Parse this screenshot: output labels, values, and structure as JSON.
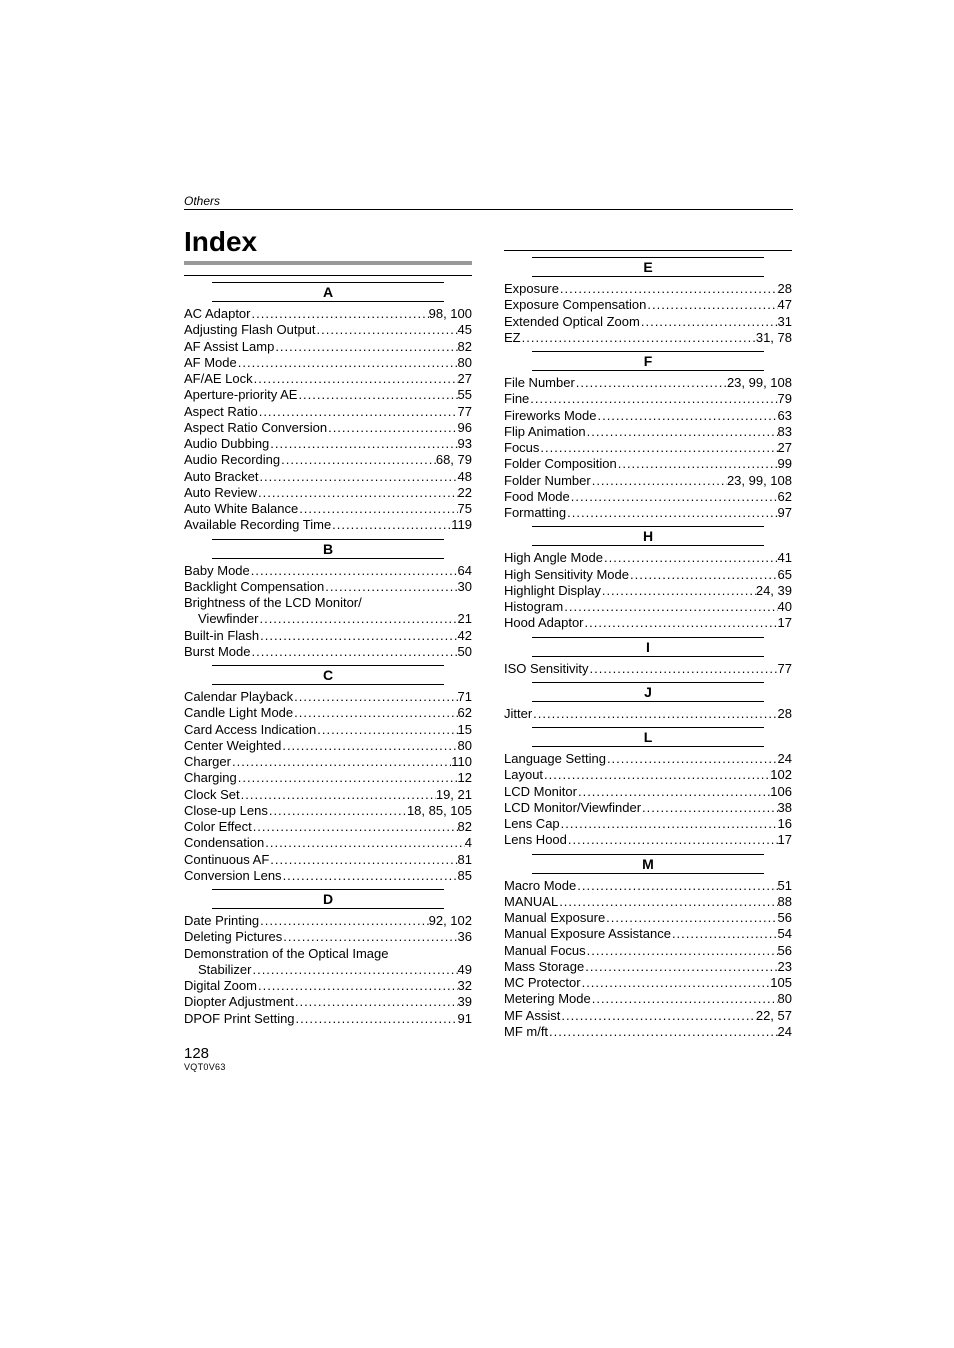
{
  "header_section": "Others",
  "title": "Index",
  "page_number": "128",
  "doc_code": "VQT0V63",
  "left_sections": [
    {
      "letter": "A",
      "top_rule": true,
      "entries": [
        {
          "term": "AC Adaptor",
          "pages": "98, 100"
        },
        {
          "term": "Adjusting Flash Output",
          "pages": "45"
        },
        {
          "term": "AF Assist Lamp",
          "pages": "82"
        },
        {
          "term": "AF Mode",
          "pages": "80"
        },
        {
          "term": "AF/AE Lock",
          "pages": "27"
        },
        {
          "term": "Aperture-priority AE",
          "pages": "55"
        },
        {
          "term": "Aspect Ratio",
          "pages": "77"
        },
        {
          "term": "Aspect Ratio Conversion",
          "pages": "96"
        },
        {
          "term": "Audio Dubbing",
          "pages": "93"
        },
        {
          "term": "Audio Recording",
          "pages": "68, 79"
        },
        {
          "term": "Auto Bracket",
          "pages": "48"
        },
        {
          "term": "Auto Review",
          "pages": "22"
        },
        {
          "term": "Auto White Balance",
          "pages": "75"
        },
        {
          "term": "Available Recording Time",
          "pages": "119"
        }
      ]
    },
    {
      "letter": "B",
      "entries": [
        {
          "term": "Baby Mode",
          "pages": "64"
        },
        {
          "term": "Backlight Compensation",
          "pages": "30"
        },
        {
          "term": "Brightness of the LCD Monitor/",
          "no_pages": true
        },
        {
          "term": "Viewfinder",
          "pages": "21",
          "sub": true
        },
        {
          "term": "Built-in Flash",
          "pages": "42"
        },
        {
          "term": "Burst Mode",
          "pages": "50"
        }
      ]
    },
    {
      "letter": "C",
      "entries": [
        {
          "term": "Calendar Playback",
          "pages": "71"
        },
        {
          "term": "Candle Light Mode",
          "pages": "62"
        },
        {
          "term": "Card Access Indication",
          "pages": "15"
        },
        {
          "term": "Center Weighted",
          "pages": "80"
        },
        {
          "term": "Charger",
          "pages": "110"
        },
        {
          "term": "Charging",
          "pages": "12"
        },
        {
          "term": "Clock Set",
          "pages": "19, 21"
        },
        {
          "term": "Close-up Lens",
          "pages": "18, 85, 105"
        },
        {
          "term": "Color Effect",
          "pages": "82"
        },
        {
          "term": "Condensation",
          "pages": "4"
        },
        {
          "term": "Continuous AF",
          "pages": "81"
        },
        {
          "term": "Conversion Lens",
          "pages": "85"
        }
      ]
    },
    {
      "letter": "D",
      "entries": [
        {
          "term": "Date Printing",
          "pages": "92, 102"
        },
        {
          "term": "Deleting Pictures",
          "pages": "36"
        },
        {
          "term": "Demonstration of the Optical Image",
          "no_pages": true
        },
        {
          "term": "Stabilizer",
          "pages": "49",
          "sub": true
        },
        {
          "term": "Digital Zoom",
          "pages": "32"
        },
        {
          "term": "Diopter Adjustment",
          "pages": "39"
        },
        {
          "term": "DPOF Print Setting",
          "pages": "91"
        }
      ]
    }
  ],
  "right_sections": [
    {
      "letter": "E",
      "top_rule": true,
      "entries": [
        {
          "term": "Exposure",
          "pages": "28"
        },
        {
          "term": "Exposure Compensation",
          "pages": "47"
        },
        {
          "term": "Extended Optical Zoom",
          "pages": "31"
        },
        {
          "term": "EZ",
          "pages": "31, 78"
        }
      ]
    },
    {
      "letter": "F",
      "entries": [
        {
          "term": "File Number",
          "pages": "23, 99, 108"
        },
        {
          "term": "Fine",
          "pages": "79"
        },
        {
          "term": "Fireworks Mode",
          "pages": "63"
        },
        {
          "term": "Flip Animation",
          "pages": "83"
        },
        {
          "term": "Focus",
          "pages": "27"
        },
        {
          "term": "Folder Composition",
          "pages": "99"
        },
        {
          "term": "Folder Number",
          "pages": "23, 99, 108"
        },
        {
          "term": "Food Mode",
          "pages": "62"
        },
        {
          "term": "Formatting",
          "pages": "97"
        }
      ]
    },
    {
      "letter": "H",
      "entries": [
        {
          "term": "High Angle Mode",
          "pages": "41"
        },
        {
          "term": "High Sensitivity Mode",
          "pages": "65"
        },
        {
          "term": "Highlight Display",
          "pages": "24, 39"
        },
        {
          "term": "Histogram",
          "pages": "40"
        },
        {
          "term": "Hood Adaptor",
          "pages": "17"
        }
      ]
    },
    {
      "letter": "I",
      "entries": [
        {
          "term": "ISO Sensitivity",
          "pages": "77"
        }
      ]
    },
    {
      "letter": "J",
      "entries": [
        {
          "term": "Jitter",
          "pages": "28"
        }
      ]
    },
    {
      "letter": "L",
      "entries": [
        {
          "term": "Language Setting",
          "pages": "24"
        },
        {
          "term": "Layout",
          "pages": "102"
        },
        {
          "term": "LCD Monitor",
          "pages": "106"
        },
        {
          "term": "LCD Monitor/Viewfinder",
          "pages": "38"
        },
        {
          "term": "Lens Cap",
          "pages": "16"
        },
        {
          "term": "Lens Hood",
          "pages": "17"
        }
      ]
    },
    {
      "letter": "M",
      "entries": [
        {
          "term": "Macro Mode",
          "pages": "51"
        },
        {
          "term": "MANUAL",
          "pages": "88"
        },
        {
          "term": "Manual Exposure",
          "pages": "56"
        },
        {
          "term": "Manual Exposure Assistance",
          "pages": "54"
        },
        {
          "term": "Manual Focus",
          "pages": "56"
        },
        {
          "term": "Mass Storage",
          "pages": "23"
        },
        {
          "term": "MC Protector",
          "pages": "105"
        },
        {
          "term": "Metering Mode",
          "pages": "80"
        },
        {
          "term": "MF Assist",
          "pages": "22, 57"
        },
        {
          "term": "MF m/ft",
          "pages": "24"
        }
      ]
    }
  ]
}
